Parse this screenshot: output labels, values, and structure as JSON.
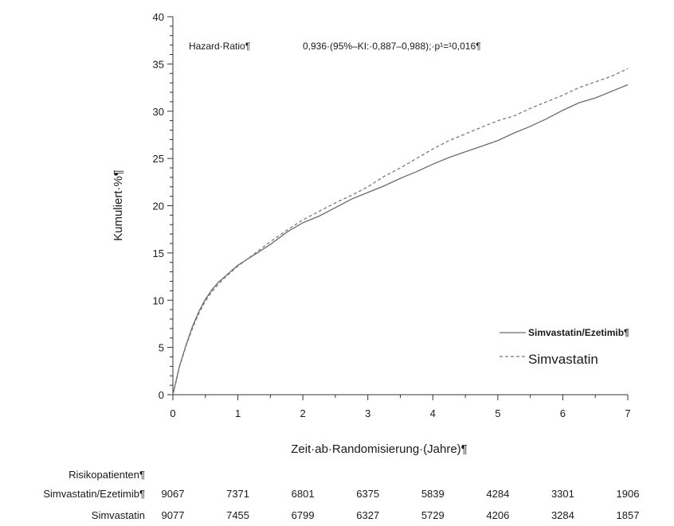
{
  "chart_data": {
    "type": "line",
    "xlabel": "Zeit·ab·Randomisierung·(Jahre)¶",
    "ylabel": "Kumuliert·%¶",
    "xlim": [
      0,
      7
    ],
    "ylim": [
      0,
      40
    ],
    "xticks": [
      "0",
      "1",
      "2",
      "3",
      "4",
      "5",
      "6",
      "7"
    ],
    "yticks": [
      "0",
      "5",
      "10",
      "15",
      "20",
      "25",
      "30",
      "35",
      "40"
    ],
    "grid": false,
    "legend_position": "bottom-right",
    "annotation": {
      "label": "Hazard·Ratio¶",
      "value": "0,936·(95%–KI:·0,887–0,988);·p¹=¹0,016¶"
    },
    "series": [
      {
        "name": "Simvastatin/Ezetimib¶",
        "style": "solid",
        "color": "#6b6b6b",
        "x": [
          0,
          0.05,
          0.1,
          0.2,
          0.3,
          0.4,
          0.5,
          0.6,
          0.7,
          0.8,
          0.9,
          1.0,
          1.25,
          1.5,
          1.75,
          2.0,
          2.25,
          2.5,
          2.75,
          3.0,
          3.25,
          3.5,
          3.75,
          4.0,
          4.25,
          4.5,
          4.75,
          5.0,
          5.25,
          5.5,
          5.75,
          6.0,
          6.25,
          6.5,
          6.75,
          7.0
        ],
        "y": [
          0,
          1.5,
          3.0,
          5.2,
          7.2,
          8.8,
          10.1,
          11.1,
          11.9,
          12.5,
          13.1,
          13.7,
          14.8,
          15.9,
          17.2,
          18.2,
          18.9,
          19.8,
          20.7,
          21.4,
          22.1,
          22.9,
          23.6,
          24.4,
          25.1,
          25.7,
          26.3,
          26.9,
          27.7,
          28.4,
          29.2,
          30.1,
          30.9,
          31.4,
          32.1,
          32.8
        ]
      },
      {
        "name": "Simvastatin",
        "style": "dashed",
        "color": "#7a7a7a",
        "x": [
          0,
          0.05,
          0.1,
          0.2,
          0.3,
          0.4,
          0.5,
          0.6,
          0.7,
          0.8,
          0.9,
          1.0,
          1.25,
          1.5,
          1.75,
          2.0,
          2.25,
          2.5,
          2.75,
          3.0,
          3.25,
          3.5,
          3.75,
          4.0,
          4.25,
          4.5,
          4.75,
          5.0,
          5.25,
          5.5,
          5.75,
          6.0,
          6.25,
          6.5,
          6.75,
          7.0
        ],
        "y": [
          0,
          1.4,
          2.9,
          5.1,
          7.0,
          8.6,
          9.9,
          10.9,
          11.7,
          12.4,
          13.0,
          13.6,
          14.9,
          16.2,
          17.4,
          18.5,
          19.4,
          20.3,
          21.1,
          22.0,
          23.1,
          24.0,
          25.0,
          26.0,
          26.9,
          27.6,
          28.3,
          29.0,
          29.5,
          30.3,
          31.0,
          31.7,
          32.5,
          33.1,
          33.7,
          34.5
        ]
      }
    ]
  },
  "risk_table": {
    "title": "Risikopatienten¶",
    "rows": [
      {
        "label": "Simvastatin/Ezetimib¶",
        "values": [
          "9067",
          "7371",
          "6801",
          "6375",
          "5839",
          "4284",
          "3301",
          "1906"
        ]
      },
      {
        "label": "Simvastatin",
        "values": [
          "9077",
          "7455",
          "6799",
          "6327",
          "5729",
          "4206",
          "3284",
          "1857"
        ]
      }
    ]
  }
}
